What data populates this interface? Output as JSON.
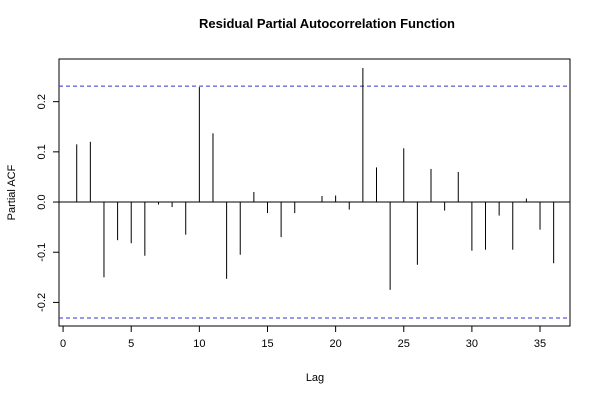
{
  "chart_data": {
    "type": "bar",
    "title": "Residual Partial Autocorrelation Function",
    "xlabel": "Lag",
    "ylabel": "Partial ACF",
    "xlim": [
      -0.3,
      37.2
    ],
    "ylim": [
      -0.247,
      0.285
    ],
    "xticks": [
      0,
      5,
      10,
      15,
      20,
      25,
      30,
      35
    ],
    "yticks": [
      -0.2,
      -0.1,
      0.0,
      0.1,
      0.2
    ],
    "x": [
      1,
      2,
      3,
      4,
      5,
      6,
      7,
      8,
      9,
      10,
      11,
      12,
      13,
      14,
      15,
      16,
      17,
      18,
      19,
      20,
      21,
      22,
      23,
      24,
      25,
      26,
      27,
      28,
      29,
      30,
      31,
      32,
      33,
      34,
      35,
      36
    ],
    "values": [
      0.115,
      0.12,
      -0.15,
      -0.076,
      -0.082,
      -0.107,
      -0.005,
      -0.01,
      -0.065,
      0.229,
      0.137,
      -0.153,
      -0.105,
      0.02,
      -0.022,
      -0.07,
      -0.022,
      0.0,
      0.012,
      0.013,
      -0.015,
      0.267,
      0.069,
      -0.175,
      0.107,
      -0.125,
      0.066,
      -0.017,
      0.06,
      -0.097,
      -0.095,
      -0.027,
      -0.095,
      0.007,
      -0.055,
      -0.122
    ],
    "confidence_bound": 0.231,
    "grid": false,
    "colors": {
      "bars": "#000000",
      "bounds": "#3333cc",
      "zero_line": "#000000"
    }
  }
}
